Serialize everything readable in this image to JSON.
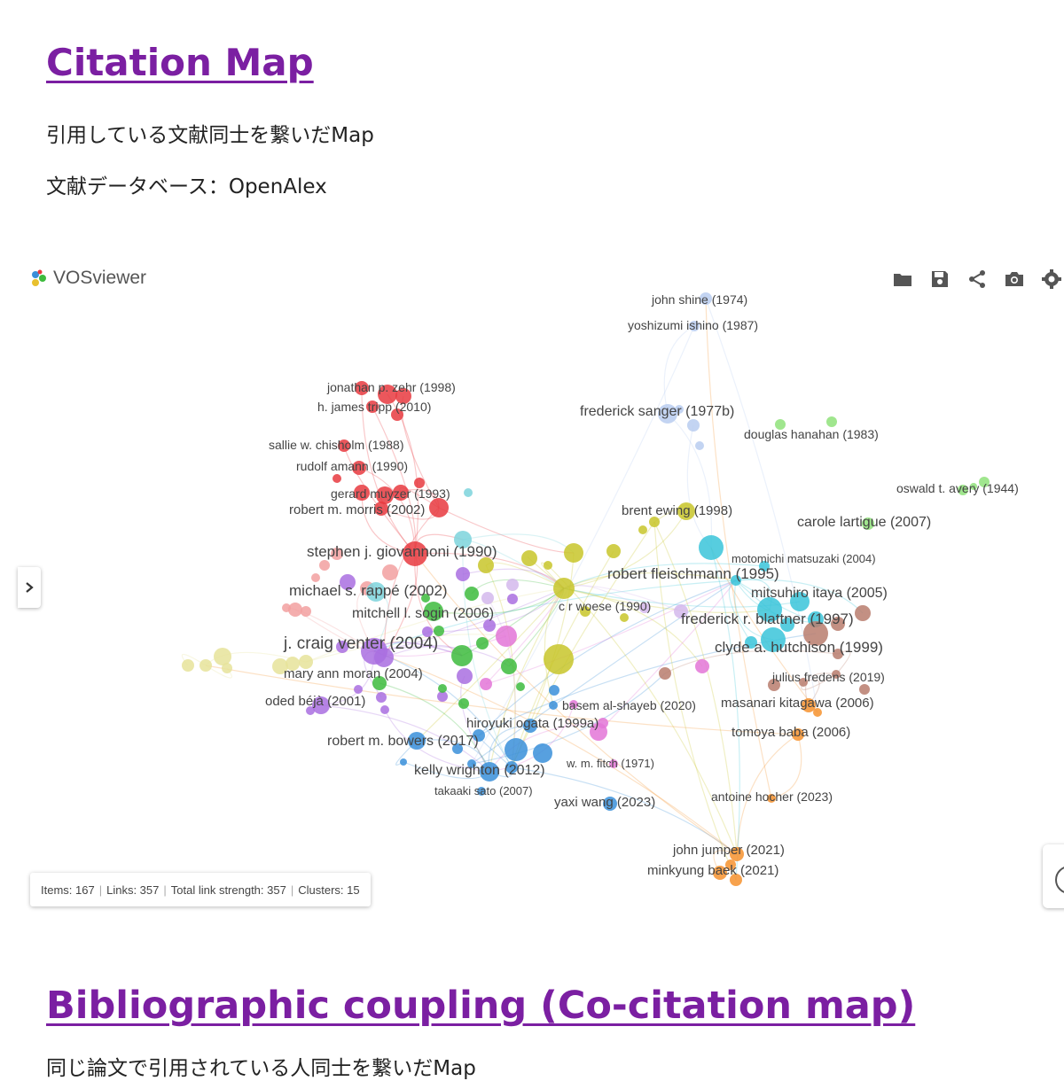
{
  "section1": {
    "title": "Citation Map",
    "desc1": "引用している文献同士を繋いだMap",
    "desc2": "文献データベース：OpenAlex"
  },
  "viewer": {
    "brand": "VOSviewer",
    "toolbar": [
      "folder-icon",
      "save-icon",
      "share-icon",
      "camera-icon",
      "settings-icon"
    ],
    "stats": {
      "items": "Items: 167",
      "links": "Links: 357",
      "strength": "Total link strength: 357",
      "clusters": "Clusters: 15"
    },
    "cluster_colors": {
      "red": "#e8393f",
      "pink": "#f2a0a0",
      "green": "#3dbb3d",
      "blue": "#3a8fd9",
      "yellow": "#c8c62a",
      "purple": "#a96ee0",
      "cyan": "#39c4d9",
      "orange": "#f6922e",
      "brown": "#b87c6d",
      "lightblue": "#b8cdf0",
      "lightgreen": "#8fe27a",
      "magenta": "#e376d7",
      "paleyellow": "#e6e39a",
      "lavender": "#d4b8ec",
      "teal": "#7dd3dc"
    },
    "labels": [
      "john shine (1974)",
      "yoshizumi ishino (1987)",
      "jonathan p. zehr (1998)",
      "h. james tripp (2010)",
      "frederick sanger (1977b)",
      "douglas hanahan (1983)",
      "sallie w. chisholm (1988)",
      "rudolf amann (1990)",
      "gerard muyzer (1993)",
      "oswald t. avery (1944)",
      "robert m. morris (2002)",
      "brent ewing (1998)",
      "carole lartigue (2007)",
      "stephen j. giovannoni (1990)",
      "motomichi matsuzaki (2004)",
      "robert fleischmann (1995)",
      "michael s. rappé (2002)",
      "mitsuhiro itaya (2005)",
      "c r woese (1990)",
      "mitchell l. sogin (2006)",
      "frederick r. blattner (1997)",
      "j. craig venter (2004)",
      "clyde a. hutchison (1999)",
      "mary ann moran (2004)",
      "julius fredens (2019)",
      "oded béjà (2001)",
      "basem al-shayeb (2020)",
      "masanari kitagawa (2006)",
      "hiroyuki ogata (1999a)",
      "tomoya baba (2006)",
      "robert m. bowers (2017)",
      "w. m. fitch (1971)",
      "kelly wrighton (2012)",
      "takaaki sato (2007)",
      "yaxi wang (2023)",
      "antoine hocher (2023)",
      "john jumper (2021)",
      "minkyung baek (2021)"
    ]
  },
  "section2": {
    "title": "Bibliographic coupling (Co-citation map)",
    "desc": "同じ論文で引用されている人同士を繋いだMap"
  }
}
